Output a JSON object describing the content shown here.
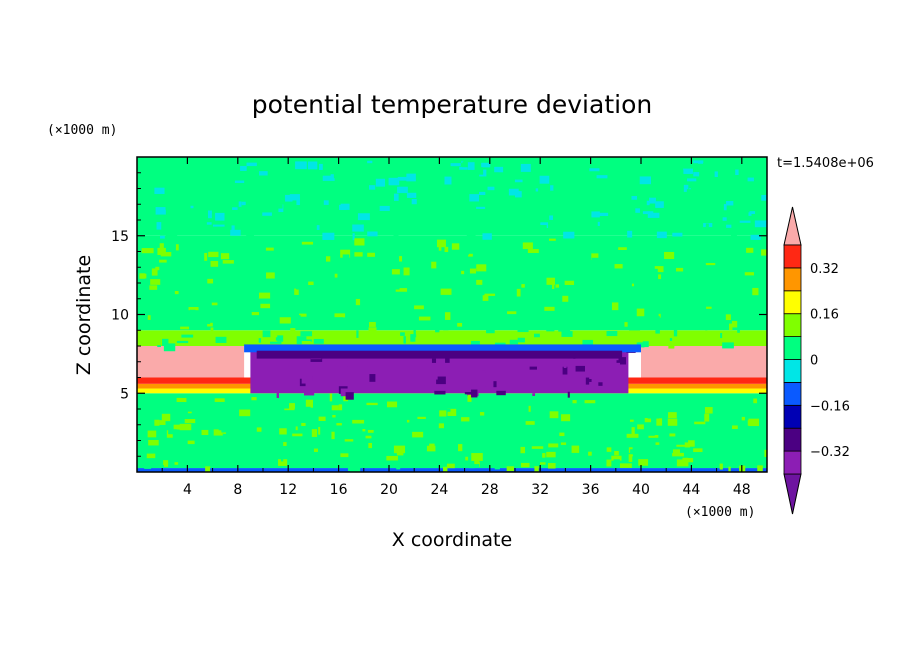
{
  "chart_data": {
    "type": "heatmap",
    "title": "potential temperature deviation",
    "xlabel": "X coordinate",
    "ylabel": "Z coordinate",
    "x_unit": "(×1000 m)",
    "y_unit": "(×1000 m)",
    "xlim": [
      0,
      50
    ],
    "ylim": [
      0,
      20
    ],
    "x_ticks": [
      4,
      8,
      12,
      16,
      20,
      24,
      28,
      32,
      36,
      40,
      44,
      48
    ],
    "y_ticks": [
      5,
      10,
      15
    ],
    "annotation": "t=1.5408e+06",
    "colorbar": {
      "levels": [
        -0.4,
        -0.32,
        -0.24,
        -0.16,
        -0.08,
        0,
        0.08,
        0.16,
        0.24,
        0.32,
        0.4
      ],
      "tick_labels": [
        "0.32",
        "0.16",
        "0",
        "−0.16",
        "−0.32"
      ],
      "tick_values": [
        0.32,
        0.16,
        0,
        -0.16,
        -0.32
      ],
      "colors_low_to_high": [
        "#8C1EB4",
        "#4B0082",
        "#0000B4",
        "#0A5AFF",
        "#00E6E6",
        "#00FF80",
        "#80FF00",
        "#FFFF00",
        "#FF9600",
        "#FF2814"
      ],
      "under_color": "#6E14A0",
      "over_color": "#FAAAAA"
    },
    "regions": [
      {
        "z": [
          0,
          0.25
        ],
        "value": -0.12
      },
      {
        "z": [
          0.25,
          5.0
        ],
        "value": 0.06
      },
      {
        "z": [
          5.0,
          5.3
        ],
        "value": 0.2
      },
      {
        "z": [
          5.3,
          5.6
        ],
        "value": 0.28
      },
      {
        "z": [
          5.6,
          6.0
        ],
        "value": 0.34
      },
      {
        "z": [
          6.0,
          8.0
        ],
        "value": 0.45,
        "x": [
          0,
          8.5
        ],
        "note": "edge"
      },
      {
        "z": [
          6.0,
          8.0
        ],
        "value": 0.45,
        "x": [
          40,
          50
        ],
        "note": "edge"
      },
      {
        "z": [
          5.0,
          8.0
        ],
        "value": -0.33,
        "x": [
          9,
          39
        ],
        "note": "cold pool"
      },
      {
        "z": [
          8.0,
          9.0
        ],
        "value": 0.12
      },
      {
        "z": [
          9.0,
          15.0
        ],
        "value": 0.06
      },
      {
        "z": [
          15.0,
          20.0
        ],
        "value": 0.0
      }
    ]
  }
}
